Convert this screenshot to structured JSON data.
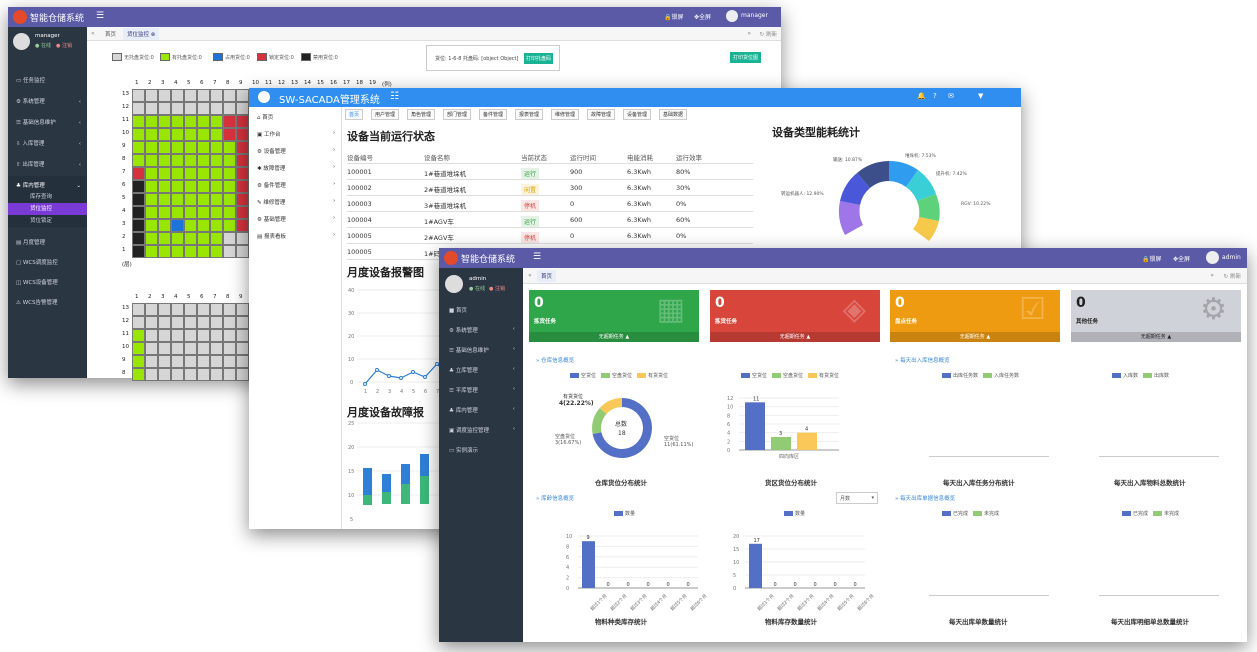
{
  "w1": {
    "app_title": "智能仓储系统",
    "top_right": {
      "lock": "锁屏",
      "fullscreen": "全屏",
      "user": "manager"
    },
    "user": {
      "name": "manager",
      "online": "在线",
      "logout": "注销"
    },
    "menu": [
      "任务监控",
      "系统管理",
      "基础信息维护",
      "入库管理",
      "出库管理",
      "库内管理",
      "月度管理",
      "WCS调度监控",
      "WCS设备管理",
      "WCS告警管理"
    ],
    "submenu": [
      "库存查询",
      "货位监控",
      "货位锁定"
    ],
    "tabs": {
      "home": "首页",
      "current": "货位监控"
    },
    "refresh": "刷新",
    "legend": [
      "无托盘货位:0",
      "有托盘货位:0",
      "占用货位:0",
      "锁定货位:0",
      "禁用货位:0"
    ],
    "info_text": "货位: 1-6-8 托盘码: [object Object]",
    "info_button": "打印托盘码",
    "print_button": "打印货位图",
    "col_ticks": [
      "1",
      "2",
      "3",
      "4",
      "5",
      "6",
      "7",
      "8",
      "9",
      "10",
      "11",
      "12",
      "13",
      "14",
      "15",
      "16",
      "17",
      "18",
      "19",
      "(列)"
    ],
    "row_ticks": [
      "13",
      "12",
      "11",
      "10",
      "9",
      "8",
      "7",
      "6",
      "5",
      "4",
      "3",
      "2",
      "1",
      "(层)"
    ],
    "row_ticks2": [
      "13",
      "12",
      "11",
      "10",
      "9",
      "8"
    ]
  },
  "w2": {
    "app_title": "SW-SACADA管理系统",
    "menu": [
      "首页",
      "工作台",
      "设备管理",
      "故障管理",
      "备件管理",
      "维修管理",
      "基础管理",
      "报表看板"
    ],
    "tabs": [
      "首页",
      "用户管理",
      "角色管理",
      "部门管理",
      "备件管理",
      "报表管理",
      "维修管理",
      "故障管理",
      "设备管理",
      "基础数据"
    ],
    "table_title": "设备当前运行状态",
    "table_headers": [
      "设备编号",
      "设备名称",
      "当前状态",
      "运行时间",
      "电能消耗",
      "运行效率"
    ],
    "rows": [
      {
        "id": "100001",
        "name": "1#巷道堆垛机",
        "status": "运行",
        "time": "900",
        "energy": "6.3Kwh",
        "eff": "80%"
      },
      {
        "id": "100002",
        "name": "2#巷道堆垛机",
        "status": "闲置",
        "time": "300",
        "energy": "6.3Kwh",
        "eff": "30%"
      },
      {
        "id": "100003",
        "name": "3#巷道堆垛机",
        "status": "停机",
        "time": "0",
        "energy": "6.3Kwh",
        "eff": "0%"
      },
      {
        "id": "100004",
        "name": "1#AGV车",
        "status": "运行",
        "time": "600",
        "energy": "6.3Kwh",
        "eff": "60%"
      },
      {
        "id": "100005",
        "name": "2#AGV车",
        "status": "停机",
        "time": "0",
        "energy": "6.3Kwh",
        "eff": "0%"
      },
      {
        "id": "100005",
        "name": "1#码",
        "status": "",
        "time": "",
        "energy": "",
        "eff": ""
      }
    ],
    "status_colors": {
      "运行": "#2e9e3e",
      "闲置": "#d9a400",
      "停机": "#d0463c"
    },
    "alarm_title": "月度设备报警图",
    "fault_title": "月度设备故障报",
    "energy_title": "设备类型能耗统计",
    "pie_labels": [
      "输送: 10.87%",
      "堆垛机: 7.53%",
      "提升机: 7.42%",
      "RGV: 10.22%",
      "转运机器人: 12.90%"
    ]
  },
  "w3": {
    "app_title": "智能仓储系统",
    "top_right": {
      "lock": "锁屏",
      "fullscreen": "全屏",
      "user": "admin"
    },
    "user": {
      "name": "admin",
      "online": "在线",
      "logout": "注销"
    },
    "menu": [
      "首页",
      "系统管理",
      "基础信息维护",
      "立库管理",
      "平库管理",
      "库内管理",
      "调度监控管理",
      "实例演示"
    ],
    "tab_home": "首页",
    "refresh": "刷新",
    "cards": [
      {
        "num": "0",
        "name": "拣货任务",
        "footer": "无超期任务",
        "color": "#2fa64a"
      },
      {
        "num": "0",
        "name": "拣货任务",
        "footer": "无超期任务",
        "color": "#d8453b"
      },
      {
        "num": "0",
        "name": "盘点任务",
        "footer": "无超期任务",
        "color": "#ef9b12"
      },
      {
        "num": "0",
        "name": "其他任务",
        "footer": "无超期任务",
        "color": "#cfd2d8"
      }
    ],
    "sections": [
      "仓库信息概览",
      "每天出入库信息概览",
      "库龄信息概览",
      "每天出库单据信息概览"
    ],
    "legend_loc": [
      "空货位",
      "空盘货位",
      "有货货位"
    ],
    "legend_task": [
      "出库任务数",
      "入库任务数"
    ],
    "legend_total": [
      "入库数",
      "出库数"
    ],
    "legend_qty": "数量",
    "legend_done": [
      "已完成",
      "未完成"
    ],
    "select_month": "月数",
    "donut": {
      "center_label": "总数",
      "center_value": "18",
      "top": "有货货位",
      "top_val": "4(22.22%)",
      "left": "空盘货位",
      "left_val": "3(16.67%)",
      "right": "空货位",
      "right_val": "11(61.11%)"
    },
    "chart_titles": [
      "仓库货位分布统计",
      "货区货位分布统计",
      "每天出入库任务分布统计",
      "每天出入库物料总数统计",
      "物料种类库存统计",
      "物料库存数量统计",
      "每天出库单数量统计",
      "每天出库明细单总数量统计"
    ],
    "bar_zone": {
      "category": "四向库区",
      "values": [
        11,
        3,
        4
      ],
      "ticks": [
        "12",
        "10",
        "8",
        "6",
        "4",
        "2",
        "0"
      ]
    },
    "bar_kind": {
      "values": [
        9,
        0,
        0,
        0,
        0,
        0
      ],
      "cats": [
        "超过1个月",
        "超过2个月",
        "超过3个月",
        "超过4个月",
        "超过5个月",
        "超过6个月"
      ],
      "ticks": [
        "10",
        "8",
        "6",
        "4",
        "2",
        "0"
      ]
    },
    "bar_qty": {
      "values": [
        17,
        0,
        0,
        0,
        0,
        0
      ],
      "cats": [
        "超过1个月",
        "超过2个月",
        "超过3个月",
        "超过4个月",
        "超过5个月",
        "超过6个月"
      ],
      "ticks": [
        "20",
        "15",
        "10",
        "5",
        "0"
      ]
    },
    "colors": {
      "blue": "#5470c6",
      "green": "#91cc75",
      "yellow": "#fac858"
    }
  }
}
